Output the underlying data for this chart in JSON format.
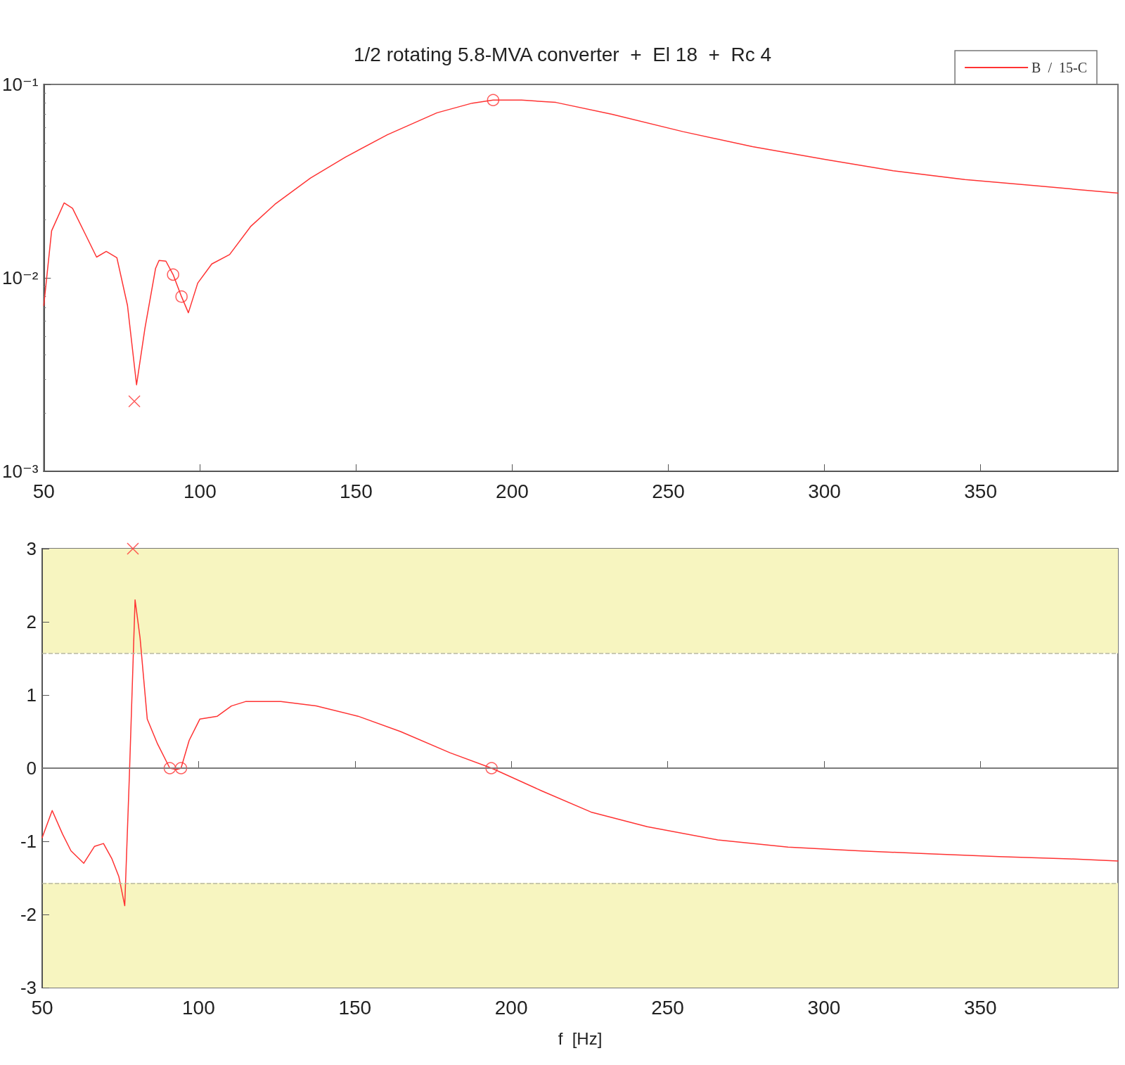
{
  "chart_data": [
    {
      "type": "line",
      "title": "1/2 rotating 5.8-MVA converter  +  El 18  +  Rc 4",
      "xlim": [
        50,
        394
      ],
      "xticks": [
        50,
        100,
        150,
        200,
        250,
        300,
        350
      ],
      "ylim": [
        0.001,
        0.1
      ],
      "yticks": [
        {
          "value": 0.001,
          "label": "10⁻³"
        },
        {
          "value": 0.01,
          "label": "10⁻²"
        },
        {
          "value": 0.1,
          "label": "10⁻¹"
        }
      ],
      "log": true,
      "grid": false,
      "legend": "top right",
      "line_style": "solid",
      "series": [
        {
          "name": "B  /  15-C",
          "color": "#ff3333",
          "x": [
            50,
            52.5,
            56.5,
            59.2,
            63.3,
            66.9,
            70,
            73.4,
            76.8,
            79.7,
            82.4,
            85.8,
            86.9,
            89.1,
            91.4,
            94.1,
            96.3,
            99.3,
            103.8,
            109.5,
            116.2,
            124,
            135.4,
            146.6,
            160,
            175.9,
            187.2,
            193.9,
            203,
            214,
            232,
            254.7,
            277,
            300,
            322,
            345,
            367,
            394
          ],
          "values": [
            0.0072,
            0.0175,
            0.0244,
            0.0229,
            0.0168,
            0.0128,
            0.0137,
            0.0127,
            0.0072,
            0.0028,
            0.0055,
            0.0112,
            0.0123,
            0.0122,
            0.0104,
            0.008,
            0.0066,
            0.0094,
            0.0118,
            0.0132,
            0.0184,
            0.024,
            0.0328,
            0.0421,
            0.0549,
            0.0713,
            0.08,
            0.083,
            0.083,
            0.0807,
            0.07,
            0.057,
            0.0477,
            0.041,
            0.0358,
            0.0322,
            0.03,
            0.0274
          ]
        },
        {
          "type": "scatter",
          "marker": "circle",
          "color": "#ff3333",
          "x": [
            91.4,
            94.1,
            193.9
          ],
          "values": [
            0.0104,
            0.008,
            0.083
          ]
        },
        {
          "type": "scatter",
          "marker": "cross",
          "color": "#ff3333",
          "x": [
            79
          ],
          "values": [
            0.0023
          ]
        }
      ]
    },
    {
      "type": "line",
      "xlabel": "f  [Hz]",
      "xlim": [
        50,
        394
      ],
      "xticks": [
        50,
        100,
        150,
        200,
        250,
        300,
        350
      ],
      "ylim": [
        -3,
        3
      ],
      "yticks": [
        -3,
        -2,
        -1,
        0,
        1,
        2,
        3
      ],
      "grid": false,
      "line_style": "solid",
      "bands": [
        {
          "axis": "y",
          "from": 1.57,
          "to": 3,
          "color": "#f7f5c0"
        },
        {
          "axis": "y",
          "from": -3,
          "to": -1.57,
          "color": "#f7f5c0"
        }
      ],
      "ref_lines": [
        {
          "axis": "y",
          "value": 1.57,
          "color": "#b8b8a0",
          "line_style": "dashed"
        },
        {
          "axis": "y",
          "value": -1.57,
          "color": "#b8b8a0",
          "line_style": "dashed"
        },
        {
          "axis": "y",
          "value": 0,
          "color": "#888888",
          "line_style": "solid"
        }
      ],
      "series": [
        {
          "color": "#ff3333",
          "x": [
            50,
            53.2,
            56.5,
            59.2,
            63.3,
            66.7,
            69.6,
            72.3,
            74.5,
            76.4,
            77.9,
            79.7,
            81.3,
            83.6,
            86.9,
            90.8,
            93,
            94.4,
            97,
            100.4,
            106,
            110.5,
            115,
            126.3,
            137.6,
            151,
            164.6,
            180.4,
            193.7,
            209.7,
            225.5,
            243.5,
            266,
            288.5,
            311,
            333.6,
            356,
            378.6,
            394
          ],
          "values": [
            -0.95,
            -0.58,
            -0.9,
            -1.13,
            -1.3,
            -1.07,
            -1.03,
            -1.24,
            -1.48,
            -1.88,
            -0.08,
            2.3,
            1.78,
            0.67,
            0.33,
            0,
            -0.02,
            0,
            0.38,
            0.67,
            0.71,
            0.85,
            0.91,
            0.91,
            0.85,
            0.71,
            0.5,
            0.21,
            0,
            -0.31,
            -0.6,
            -0.8,
            -0.98,
            -1.08,
            -1.13,
            -1.17,
            -1.21,
            -1.24,
            -1.27
          ]
        },
        {
          "type": "scatter",
          "marker": "circle",
          "color": "#ff3333",
          "x": [
            90.8,
            94.4,
            193.7
          ],
          "values": [
            0,
            0,
            0
          ]
        },
        {
          "type": "scatter",
          "marker": "cross",
          "color": "#ff3333",
          "x": [
            79
          ],
          "values": [
            3
          ]
        }
      ]
    }
  ]
}
